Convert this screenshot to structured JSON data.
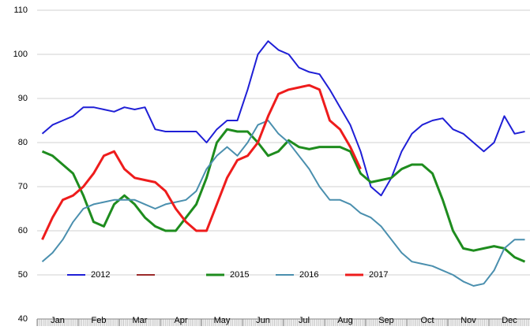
{
  "chart_data": {
    "type": "line",
    "categories": [
      "Jan",
      null,
      null,
      null,
      "Feb",
      null,
      null,
      null,
      "Mar",
      null,
      null,
      null,
      "Apr",
      null,
      null,
      null,
      "May",
      null,
      null,
      null,
      "Jun",
      null,
      null,
      null,
      "Jul",
      null,
      null,
      null,
      "Aug",
      null,
      null,
      null,
      "Sep",
      null,
      null,
      null,
      "Oct",
      null,
      null,
      null,
      "Nov",
      null,
      null,
      null,
      "Dec",
      null,
      null,
      null
    ],
    "series": [
      {
        "name": "2012",
        "color": "#1f1fd6",
        "line_width": 2,
        "values": [
          82,
          84,
          85,
          86,
          88,
          88,
          87.5,
          87,
          88,
          87.5,
          88,
          83,
          82.5,
          82.5,
          82.5,
          82.5,
          80,
          83,
          85,
          85,
          92,
          100,
          103,
          101,
          100,
          97,
          96,
          95.5,
          92,
          88,
          84,
          78,
          70,
          68,
          72,
          78,
          82,
          84,
          85,
          85.5,
          83,
          82,
          80,
          78,
          80,
          86,
          82,
          82.5
        ]
      },
      {
        "name": null,
        "color": "#9b2a2a",
        "line_width": 2,
        "values": [
          null,
          null,
          null,
          null,
          null,
          null,
          null,
          null,
          null,
          null,
          null,
          null,
          null,
          null,
          null,
          null,
          null,
          null,
          null,
          null,
          null,
          null,
          null,
          null,
          null,
          null,
          null,
          null,
          null,
          null,
          null,
          null,
          null,
          null,
          null,
          null,
          null,
          null,
          null,
          null,
          null,
          null,
          null,
          null,
          null,
          null,
          null,
          null
        ]
      },
      {
        "name": "2015",
        "color": "#1e8c1e",
        "line_width": 3,
        "values": [
          78,
          77,
          75,
          73,
          68,
          62,
          61,
          66,
          68,
          66,
          63,
          61,
          60,
          60,
          63,
          66,
          72,
          80,
          83,
          82.5,
          82.5,
          80,
          77,
          78,
          80.5,
          79,
          78.5,
          79,
          79,
          79,
          78,
          73,
          71,
          71.5,
          72,
          74,
          75,
          75,
          73,
          67,
          60,
          56,
          55.5,
          56,
          56.5,
          56,
          54,
          53
        ]
      },
      {
        "name": "2016",
        "color": "#4a8fae",
        "line_width": 2,
        "values": [
          53,
          55,
          58,
          62,
          65,
          66,
          66.5,
          67,
          67,
          67,
          66,
          65,
          66,
          66.5,
          67,
          69,
          74,
          77,
          79,
          77,
          80,
          84,
          85,
          82,
          80,
          77,
          74,
          70,
          67,
          67,
          66,
          64,
          63,
          61,
          58,
          55,
          53,
          52.5,
          52,
          51,
          50,
          48.5,
          47.5,
          48,
          51,
          56,
          58,
          58
        ]
      },
      {
        "name": "2017",
        "color": "#ee1c1c",
        "line_width": 3,
        "values": [
          58,
          63,
          67,
          68,
          70,
          73,
          77,
          78,
          74,
          72,
          71.5,
          71,
          69,
          65,
          62,
          60,
          60,
          66,
          72,
          76,
          77,
          80,
          86,
          91,
          92,
          92.5,
          93,
          92,
          85,
          83,
          79,
          74,
          null,
          null,
          null,
          null,
          null,
          null,
          null,
          null,
          null,
          null,
          null,
          null,
          null,
          null,
          null,
          null
        ]
      }
    ],
    "ylim": [
      40,
      110
    ],
    "yticks": [
      40,
      50,
      60,
      70,
      80,
      90,
      100,
      110
    ],
    "grid": true
  }
}
